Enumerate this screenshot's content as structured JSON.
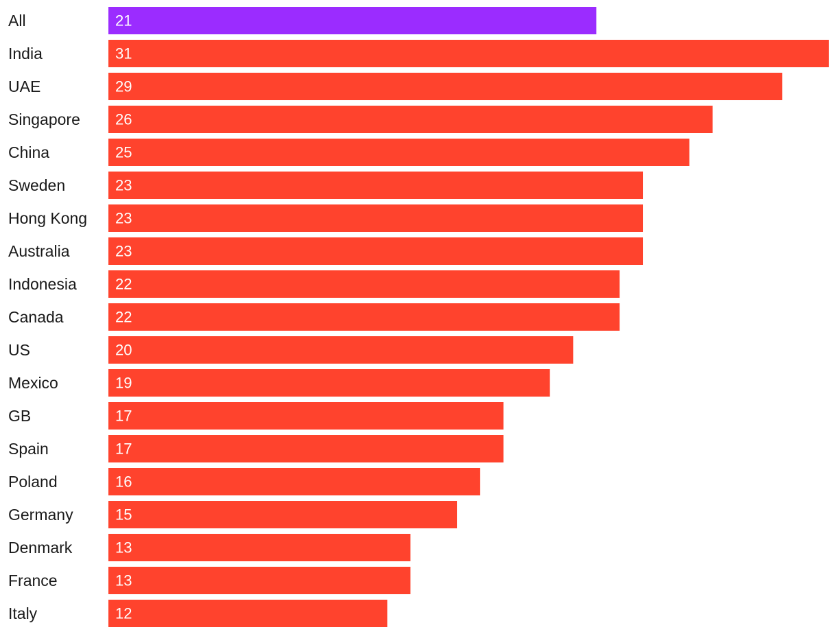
{
  "chart_data": {
    "type": "bar",
    "orientation": "horizontal",
    "categories": [
      "All",
      "India",
      "UAE",
      "Singapore",
      "China",
      "Sweden",
      "Hong Kong",
      "Australia",
      "Indonesia",
      "Canada",
      "US",
      "Mexico",
      "GB",
      "Spain",
      "Poland",
      "Germany",
      "Denmark",
      "France",
      "Italy"
    ],
    "values": [
      21,
      31,
      29,
      26,
      25,
      23,
      23,
      23,
      22,
      22,
      20,
      19,
      17,
      17,
      16,
      15,
      13,
      13,
      12
    ],
    "xlim": [
      0,
      31
    ],
    "grid": false,
    "legend": "none",
    "data_labels": "inside-start",
    "colors": {
      "highlight": "#9b2cff",
      "default": "#ff432d",
      "highlight_category": "All",
      "label_text": "#1a1a1a",
      "value_text": "#ffffff"
    }
  }
}
